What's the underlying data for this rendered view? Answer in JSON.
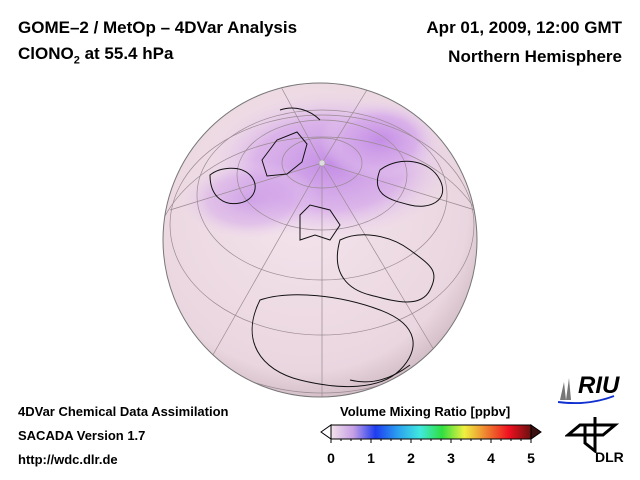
{
  "header": {
    "title_line1": "GOME–2 / MetOp – 4DVar Analysis",
    "species": "ClONO",
    "species_sub": "2",
    "level_text": " at 55.4 hPa",
    "datetime": "Apr 01, 2009, 12:00 GMT",
    "region": "Northern Hemisphere"
  },
  "footer": {
    "line1": "4DVar Chemical Data Assimilation",
    "line2": "SACADA Version 1.7",
    "line3": "http://wdc.dlr.de"
  },
  "colorbar": {
    "title": "Volume Mixing Ratio [ppbv]",
    "ticks": [
      "0",
      "1",
      "2",
      "3",
      "4",
      "5"
    ],
    "range": [
      0,
      5
    ],
    "colors": [
      "#f3e3ea",
      "#c7a0e6",
      "#1f3cf0",
      "#2aa0f0",
      "#40e8e0",
      "#30e040",
      "#f0f040",
      "#f08030",
      "#f01020",
      "#6a1010"
    ]
  },
  "logos": {
    "riu": "RIU",
    "dlr": "DLR"
  }
}
